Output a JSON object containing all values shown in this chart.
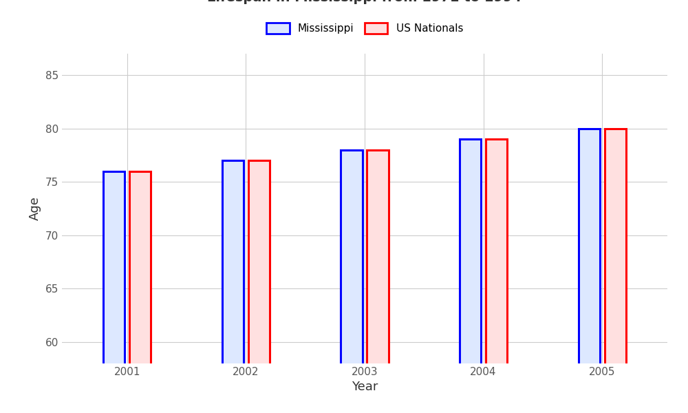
{
  "xlabel": "Year",
  "ylabel": "Age",
  "years": [
    2001,
    2002,
    2003,
    2004,
    2005
  ],
  "mississippi": [
    76.0,
    77.0,
    78.0,
    79.0,
    80.0
  ],
  "us_nationals": [
    76.0,
    77.0,
    78.0,
    79.0,
    80.0
  ],
  "ylim": [
    58,
    87
  ],
  "yticks": [
    60,
    65,
    70,
    75,
    80,
    85
  ],
  "bar_width": 0.18,
  "ms_face_color": "#dde8ff",
  "ms_edge_color": "#0000ff",
  "us_face_color": "#ffe0e0",
  "us_edge_color": "#ff0000",
  "background_color": "#ffffff",
  "grid_color": "#cccccc",
  "title_fontsize": 14,
  "axis_label_fontsize": 13,
  "tick_fontsize": 11,
  "legend_fontsize": 11,
  "edge_linewidth": 2.2
}
